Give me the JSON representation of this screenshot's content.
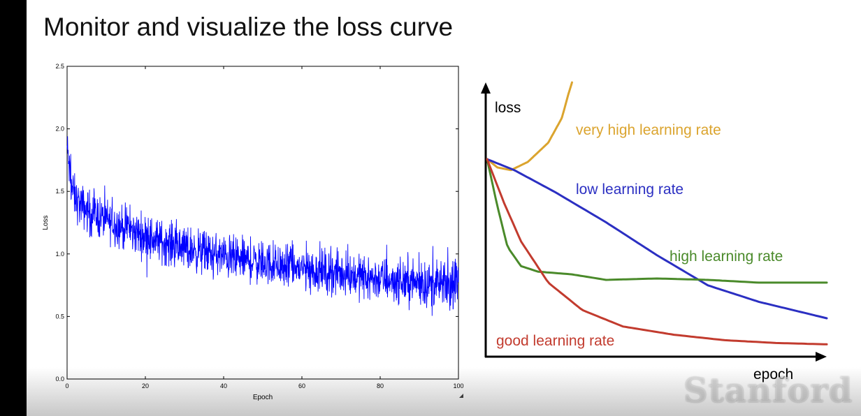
{
  "slide": {
    "title": "Monitor and visualize the loss curve",
    "logo_text": "Stanford"
  },
  "chart_data": [
    {
      "type": "line",
      "title": "",
      "xlabel": "Epoch",
      "ylabel": "Loss",
      "xlim": [
        0,
        100
      ],
      "ylim": [
        0.0,
        2.5
      ],
      "x_ticks": [
        "0",
        "20",
        "40",
        "60",
        "80",
        "100"
      ],
      "y_ticks": [
        "0.0",
        "0.5",
        "1.0",
        "1.5",
        "2.0",
        "2.5"
      ],
      "grid": false,
      "series": [
        {
          "color": "#0000ff",
          "x": [
            0,
            1,
            2,
            3,
            5,
            8,
            10,
            15,
            20,
            25,
            30,
            35,
            40,
            45,
            50,
            55,
            60,
            65,
            70,
            75,
            80,
            85,
            90,
            95,
            100
          ],
          "values": [
            1.85,
            1.55,
            1.45,
            1.4,
            1.35,
            1.3,
            1.27,
            1.2,
            1.14,
            1.09,
            1.05,
            1.01,
            0.98,
            0.95,
            0.93,
            0.9,
            0.88,
            0.86,
            0.84,
            0.82,
            0.8,
            0.78,
            0.77,
            0.75,
            0.74
          ],
          "noise_amplitude": 0.12
        }
      ]
    },
    {
      "type": "line",
      "title": "",
      "xlabel": "epoch",
      "ylabel": "loss",
      "axes_ticks": false,
      "series": [
        {
          "name": "very high learning rate",
          "color": "#dba42e",
          "x": [
            0,
            3,
            7,
            12,
            18,
            22,
            24,
            25
          ],
          "values": [
            0.72,
            0.69,
            0.68,
            0.71,
            0.78,
            0.87,
            0.96,
            1.0
          ]
        },
        {
          "name": "low learning rate",
          "color": "#2b2fc2",
          "x": [
            0,
            8,
            20,
            35,
            50,
            65,
            80,
            100
          ],
          "values": [
            0.72,
            0.68,
            0.6,
            0.49,
            0.37,
            0.26,
            0.2,
            0.14
          ]
        },
        {
          "name": "high learning rate",
          "color": "#4a8a2a",
          "x": [
            0,
            3,
            6,
            10,
            15,
            25,
            35,
            50,
            65,
            80,
            100
          ],
          "values": [
            0.72,
            0.55,
            0.4,
            0.33,
            0.31,
            0.3,
            0.28,
            0.285,
            0.28,
            0.27,
            0.27
          ]
        },
        {
          "name": "good learning rate",
          "color": "#c23b2e",
          "x": [
            0,
            5,
            10,
            18,
            28,
            40,
            55,
            70,
            85,
            100
          ],
          "values": [
            0.72,
            0.56,
            0.42,
            0.27,
            0.17,
            0.11,
            0.08,
            0.06,
            0.05,
            0.045
          ]
        }
      ]
    }
  ]
}
